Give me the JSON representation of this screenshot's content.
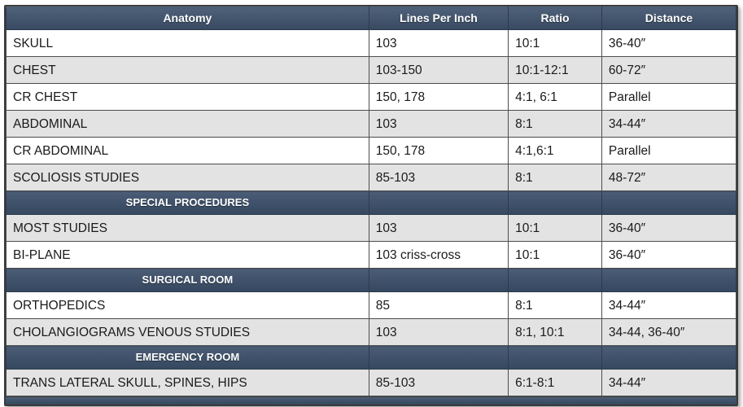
{
  "table": {
    "title": "radiographic-grid-specification-table",
    "columns": [
      "Anatomy",
      "Lines Per Inch",
      "Ratio",
      "Distance"
    ],
    "rows": [
      {
        "type": "data",
        "shaded": false,
        "cells": [
          "SKULL",
          "103",
          "10:1",
          "36-40″"
        ]
      },
      {
        "type": "data",
        "shaded": true,
        "cells": [
          "CHEST",
          "103-150",
          "10:1-12:1",
          "60-72″"
        ]
      },
      {
        "type": "data",
        "shaded": false,
        "cells": [
          "CR CHEST",
          "150, 178",
          "4:1, 6:1",
          "Parallel"
        ]
      },
      {
        "type": "data",
        "shaded": true,
        "cells": [
          "ABDOMINAL",
          "103",
          "8:1",
          "34-44″"
        ]
      },
      {
        "type": "data",
        "shaded": false,
        "cells": [
          "CR ABDOMINAL",
          "150, 178",
          "4:1,6:1",
          "Parallel"
        ]
      },
      {
        "type": "data",
        "shaded": true,
        "cells": [
          "SCOLIOSIS STUDIES",
          "85-103",
          "8:1",
          "48-72″"
        ]
      },
      {
        "type": "section",
        "label": "SPECIAL PROCEDURES"
      },
      {
        "type": "data",
        "shaded": true,
        "cells": [
          "MOST STUDIES",
          "103",
          "10:1",
          "36-40″"
        ]
      },
      {
        "type": "data",
        "shaded": false,
        "cells": [
          "BI-PLANE",
          "103 criss-cross",
          "10:1",
          "36-40″"
        ]
      },
      {
        "type": "section",
        "label": "SURGICAL ROOM"
      },
      {
        "type": "data",
        "shaded": false,
        "cells": [
          "ORTHOPEDICS",
          "85",
          "8:1",
          "34-44″"
        ]
      },
      {
        "type": "data",
        "shaded": true,
        "cells": [
          "CHOLANGIOGRAMS VENOUS STUDIES",
          "103",
          "8:1, 10:1",
          "34-44, 36-40″"
        ]
      },
      {
        "type": "section",
        "label": "EMERGENCY ROOM"
      },
      {
        "type": "data",
        "shaded": true,
        "cells": [
          "TRANS LATERAL SKULL, SPINES, HIPS",
          "85-103",
          "6:1-8:1",
          "34-44″"
        ]
      }
    ]
  },
  "colors": {
    "header_gradient_top": "#4f617a",
    "header_gradient_bottom": "#374a61",
    "section_row_bg": "#3f516a",
    "row_bg": "#ffffff",
    "row_shaded_bg": "#e3e3e3",
    "grid_line": "#4d4d4d",
    "outer_border": "#3a3a3a",
    "header_text": "#ffffff",
    "cell_text": "#1a1a1a"
  }
}
